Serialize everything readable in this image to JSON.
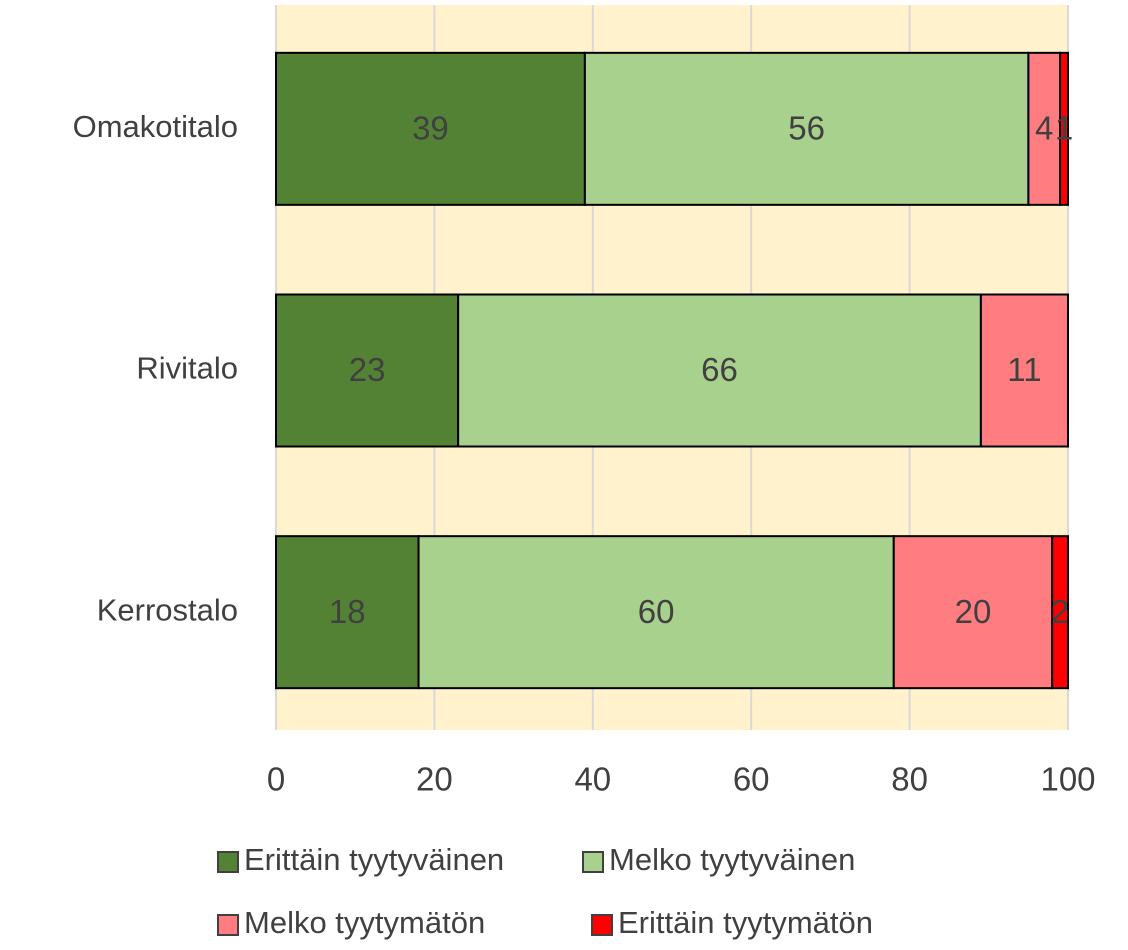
{
  "chart_data": {
    "type": "stacked_bar_horizontal",
    "categories": [
      "Omakotitalo",
      "Rivitalo",
      "Kerrostalo"
    ],
    "series": [
      {
        "name": "Erittäin tyytyväinen",
        "color": "#548235",
        "values": [
          39,
          23,
          18
        ]
      },
      {
        "name": "Melko tyytyväinen",
        "color": "#a9d18e",
        "values": [
          56,
          66,
          60
        ]
      },
      {
        "name": "Melko tyytymätön",
        "color": "#ff7c80",
        "values": [
          4,
          11,
          20
        ]
      },
      {
        "name": "Erittäin tyytymätön",
        "color": "#ff0000",
        "values": [
          1,
          null,
          2
        ]
      }
    ],
    "xlim": [
      0,
      100
    ],
    "xticks": [
      0,
      20,
      40,
      60,
      80,
      100
    ],
    "grid": true,
    "plot_background": "#fff2cc",
    "legend": "bottom"
  }
}
